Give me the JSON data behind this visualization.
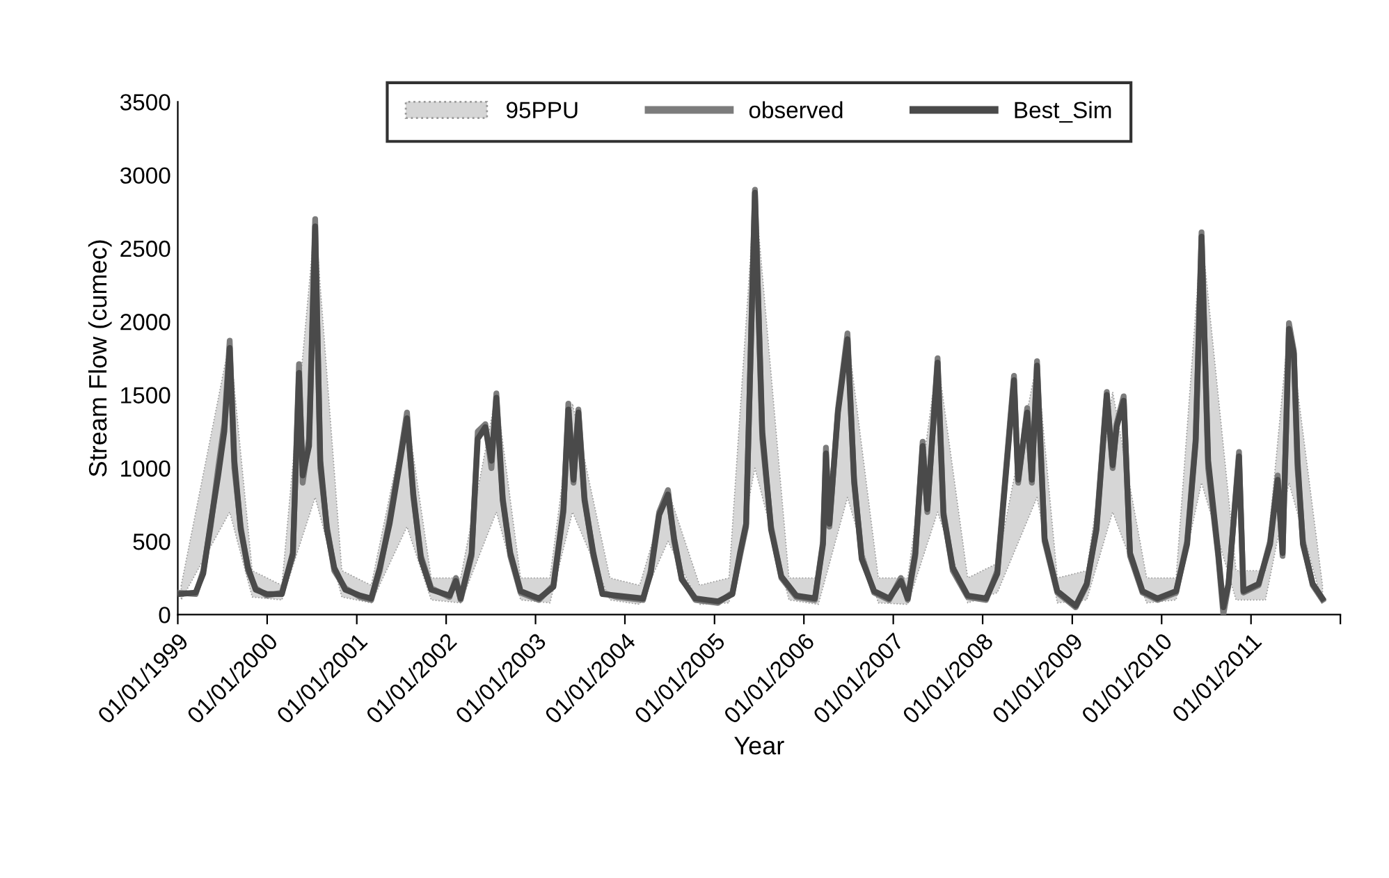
{
  "chart_data": {
    "type": "line",
    "xlabel": "Year",
    "ylabel": "Stream Flow (cumec)",
    "xlim": [
      "1999-01-01",
      "2012-01-01"
    ],
    "xticks": [
      {
        "value": "1999-01-01",
        "label": "01/01/1999"
      },
      {
        "value": "2000-01-01",
        "label": "01/01/2000"
      },
      {
        "value": "2001-01-01",
        "label": "01/01/2001"
      },
      {
        "value": "2002-01-01",
        "label": "01/01/2002"
      },
      {
        "value": "2003-01-01",
        "label": "01/01/2003"
      },
      {
        "value": "2004-01-01",
        "label": "01/01/2004"
      },
      {
        "value": "2005-01-01",
        "label": "01/01/2005"
      },
      {
        "value": "2006-01-01",
        "label": "01/01/2006"
      },
      {
        "value": "2007-01-01",
        "label": "01/01/2007"
      },
      {
        "value": "2008-01-01",
        "label": "01/01/2008"
      },
      {
        "value": "2009-01-01",
        "label": "01/01/2009"
      },
      {
        "value": "2010-01-01",
        "label": "01/01/2010"
      },
      {
        "value": "2011-01-01",
        "label": "01/01/2011"
      },
      {
        "value": "2012-01-01",
        "label": null
      }
    ],
    "ylim": [
      0,
      3500
    ],
    "yticks": [
      0,
      500,
      1000,
      1500,
      2000,
      2500,
      3000,
      3500
    ],
    "grid": false,
    "legend": "top",
    "marker": "none",
    "line_style": "solid",
    "x": [
      "1999-01-01",
      "1999-03-15",
      "1999-04-15",
      "1999-05-15",
      "1999-06-15",
      "1999-07-10",
      "1999-08-01",
      "1999-08-20",
      "1999-09-15",
      "1999-10-15",
      "1999-11-15",
      "1999-12-31",
      "2000-03-01",
      "2000-04-15",
      "2000-05-10",
      "2000-05-25",
      "2000-06-20",
      "2000-07-15",
      "2000-08-05",
      "2000-09-01",
      "2000-10-01",
      "2000-11-15",
      "2001-01-15",
      "2001-03-01",
      "2001-04-05",
      "2001-05-15",
      "2001-06-20",
      "2001-07-25",
      "2001-08-20",
      "2001-09-20",
      "2001-11-01",
      "2002-01-15",
      "2002-02-10",
      "2002-03-01",
      "2002-04-15",
      "2002-05-10",
      "2002-06-10",
      "2002-07-05",
      "2002-07-25",
      "2002-08-20",
      "2002-09-20",
      "2002-11-01",
      "2003-01-15",
      "2003-03-15",
      "2003-04-25",
      "2003-05-15",
      "2003-06-05",
      "2003-06-25",
      "2003-07-20",
      "2003-08-25",
      "2003-10-01",
      "2003-12-01",
      "2004-03-15",
      "2004-04-15",
      "2004-05-20",
      "2004-06-25",
      "2004-07-20",
      "2004-08-20",
      "2004-10-15",
      "2005-01-15",
      "2005-03-15",
      "2005-04-15",
      "2005-05-10",
      "2005-06-15",
      "2005-07-15",
      "2005-08-20",
      "2005-10-01",
      "2005-12-01",
      "2006-02-15",
      "2006-03-20",
      "2006-04-01",
      "2006-04-15",
      "2006-05-20",
      "2006-06-28",
      "2006-07-25",
      "2006-08-25",
      "2006-10-15",
      "2006-12-15",
      "2007-02-01",
      "2007-03-01",
      "2007-04-01",
      "2007-05-01",
      "2007-05-20",
      "2007-07-01",
      "2007-07-25",
      "2007-09-01",
      "2007-11-01",
      "2008-01-15",
      "2008-03-01",
      "2008-05-08",
      "2008-05-25",
      "2008-07-01",
      "2008-07-20",
      "2008-08-10",
      "2008-09-10",
      "2008-11-01",
      "2009-01-15",
      "2009-03-01",
      "2009-04-10",
      "2009-05-22",
      "2009-06-15",
      "2009-07-01",
      "2009-07-30",
      "2009-08-25",
      "2009-10-15",
      "2009-12-15",
      "2010-03-01",
      "2010-04-15",
      "2010-05-20",
      "2010-06-13",
      "2010-07-10",
      "2010-08-20",
      "2010-09-10",
      "2010-10-01",
      "2010-11-13",
      "2010-12-01",
      "2011-02-01",
      "2011-03-20",
      "2011-04-20",
      "2011-05-10",
      "2011-06-05",
      "2011-06-25",
      "2011-07-10",
      "2011-08-01",
      "2011-09-10",
      "2011-10-20"
    ],
    "series": [
      {
        "name": "95PPU",
        "type": "area",
        "color": "#d6d6d6",
        "line_style": "dotted",
        "x": [
          "1999-01-15",
          "1999-08-01",
          "1999-11-01",
          "2000-03-01",
          "2000-07-15",
          "2000-11-01",
          "2001-03-01",
          "2001-07-25",
          "2001-11-01",
          "2002-03-01",
          "2002-07-25",
          "2002-11-01",
          "2003-03-01",
          "2003-06-01",
          "2003-11-01",
          "2004-03-01",
          "2004-06-25",
          "2004-11-01",
          "2005-03-01",
          "2005-06-15",
          "2005-11-01",
          "2006-03-01",
          "2006-06-28",
          "2006-11-01",
          "2007-03-01",
          "2007-07-01",
          "2007-11-01",
          "2008-03-01",
          "2008-08-10",
          "2008-11-01",
          "2009-03-01",
          "2009-06-15",
          "2009-11-01",
          "2010-03-01",
          "2010-06-13",
          "2010-11-01",
          "2011-03-01",
          "2011-06-05",
          "2011-10-20"
        ],
        "lower": [
          100,
          700,
          120,
          100,
          800,
          120,
          80,
          600,
          100,
          80,
          700,
          100,
          80,
          700,
          100,
          70,
          500,
          70,
          80,
          1000,
          100,
          70,
          800,
          80,
          70,
          700,
          80,
          150,
          800,
          80,
          100,
          700,
          80,
          100,
          900,
          100,
          100,
          900,
          80
        ],
        "upper": [
          200,
          1870,
          300,
          200,
          2700,
          300,
          200,
          1380,
          250,
          250,
          1510,
          250,
          250,
          1440,
          250,
          200,
          850,
          200,
          250,
          2900,
          250,
          250,
          1920,
          250,
          250,
          1750,
          250,
          350,
          1730,
          250,
          300,
          1520,
          250,
          250,
          2610,
          300,
          300,
          1990,
          200
        ],
        "values": [
          null,
          null,
          null,
          null,
          null,
          null,
          null,
          null,
          null,
          null,
          null,
          null,
          null,
          null,
          null,
          null,
          null,
          null,
          null,
          null,
          null,
          null,
          null,
          null,
          null,
          null,
          null,
          null,
          null,
          null,
          null,
          null,
          null,
          null,
          null,
          null,
          null,
          null,
          null
        ]
      },
      {
        "name": "observed",
        "color": "#7c7c7c",
        "values": [
          150,
          140,
          300,
          600,
          1000,
          1300,
          1870,
          1000,
          600,
          300,
          180,
          130,
          150,
          400,
          1710,
          900,
          1200,
          2700,
          1000,
          600,
          300,
          180,
          120,
          100,
          300,
          650,
          1000,
          1380,
          800,
          400,
          180,
          120,
          250,
          100,
          400,
          1250,
          1300,
          1000,
          1510,
          800,
          400,
          150,
          100,
          200,
          700,
          1440,
          900,
          1400,
          800,
          400,
          150,
          120,
          100,
          300,
          700,
          850,
          500,
          250,
          100,
          80,
          150,
          400,
          600,
          2900,
          1200,
          600,
          250,
          120,
          100,
          500,
          1140,
          600,
          1400,
          1920,
          900,
          400,
          150,
          100,
          250,
          100,
          400,
          1180,
          700,
          1750,
          700,
          300,
          120,
          100,
          300,
          1630,
          900,
          1410,
          900,
          1730,
          500,
          150,
          50,
          200,
          600,
          1520,
          1000,
          1300,
          1490,
          400,
          150,
          100,
          150,
          500,
          1200,
          2610,
          1000,
          400,
          0,
          200,
          1110,
          150,
          200,
          500,
          950,
          400,
          1990,
          1800,
          1000,
          500,
          200,
          100
        ]
      },
      {
        "name": "Best_Sim",
        "color": "#4a4a4a",
        "values": [
          140,
          150,
          280,
          620,
          950,
          1250,
          1820,
          1050,
          580,
          320,
          170,
          140,
          140,
          420,
          1650,
          950,
          1150,
          2650,
          1050,
          580,
          320,
          170,
          130,
          110,
          320,
          620,
          980,
          1340,
          820,
          380,
          170,
          130,
          230,
          110,
          420,
          1200,
          1280,
          1050,
          1480,
          780,
          420,
          160,
          110,
          190,
          720,
          1400,
          920,
          1380,
          780,
          420,
          140,
          130,
          110,
          280,
          680,
          820,
          520,
          240,
          110,
          90,
          140,
          420,
          620,
          2880,
          1250,
          580,
          260,
          130,
          110,
          480,
          1100,
          620,
          1380,
          1880,
          920,
          380,
          160,
          110,
          230,
          110,
          420,
          1150,
          720,
          1720,
          680,
          320,
          130,
          110,
          280,
          1600,
          920,
          1380,
          920,
          1700,
          520,
          160,
          60,
          210,
          580,
          1500,
          1020,
          1280,
          1460,
          420,
          160,
          110,
          160,
          480,
          1180,
          2580,
          1050,
          420,
          50,
          210,
          1080,
          160,
          210,
          480,
          920,
          420,
          1950,
          1780,
          1050,
          480,
          210,
          110
        ]
      }
    ]
  }
}
